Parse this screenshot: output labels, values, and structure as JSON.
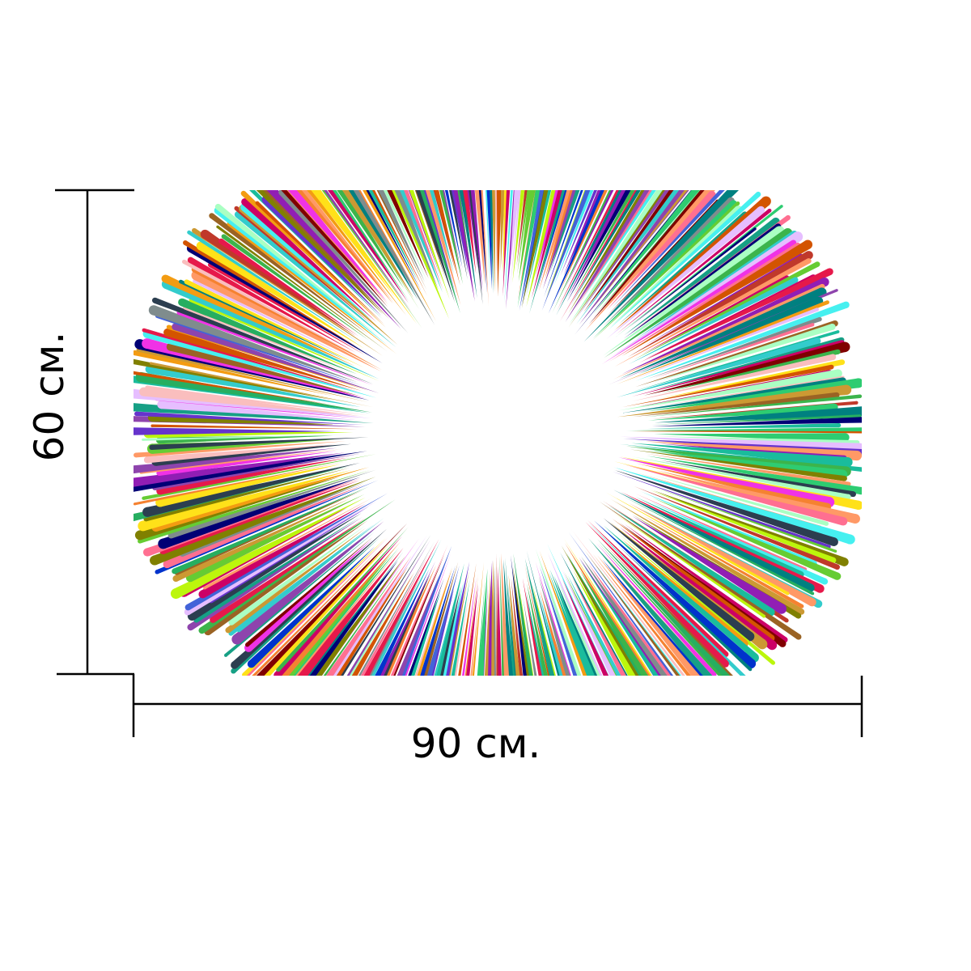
{
  "dimensions": {
    "height_label": "60 см.",
    "width_label": "90 см."
  },
  "artwork": {
    "name": "rainbow-burst",
    "palette": [
      "#e6194b",
      "#3cb44b",
      "#ffe119",
      "#4363d8",
      "#f58231",
      "#911eb4",
      "#46f0f0",
      "#f032e6",
      "#bcf60c",
      "#fabebe",
      "#008080",
      "#9a6324",
      "#800000",
      "#aaffc3",
      "#808000",
      "#000075",
      "#e6beff",
      "#ff6f91",
      "#2ecc71",
      "#1abc9c",
      "#8e44ad",
      "#c0392b",
      "#f39c12",
      "#16a085",
      "#2c3e50",
      "#d35400",
      "#7f8c8d",
      "#27ae60",
      "#0033cc",
      "#cc0066",
      "#66cc33",
      "#ff9966",
      "#6633cc",
      "#33cccc",
      "#cc9933"
    ]
  }
}
